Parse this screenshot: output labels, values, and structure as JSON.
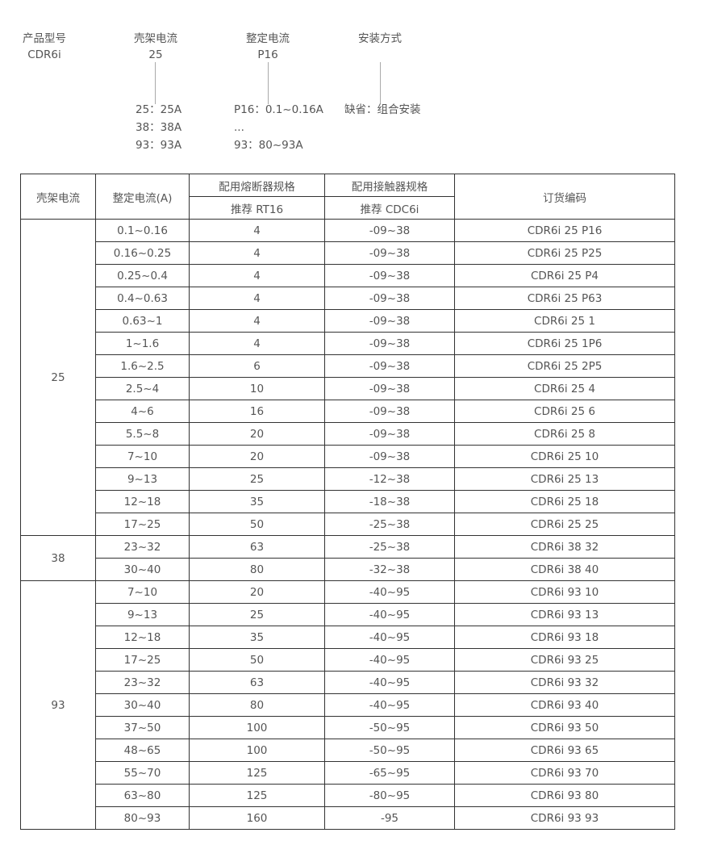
{
  "legend": {
    "fields": [
      {
        "label": "产品型号",
        "value": "CDR6i"
      },
      {
        "label": "壳架电流",
        "value": "25"
      },
      {
        "label": "整定电流",
        "value": "P16"
      },
      {
        "label": "安装方式",
        "value": ""
      }
    ],
    "frame_options": [
      "25：25A",
      "38：38A",
      "93：93A"
    ],
    "setting_options": [
      "P16：0.1~0.16A",
      "...",
      "93：80~93A"
    ],
    "install_options": [
      "缺省：组合安装"
    ]
  },
  "table": {
    "headers": {
      "frame": "壳架电流",
      "setting": "整定电流(A)",
      "fuse": "配用熔断器规格",
      "fuse_sub": "推荐 RT16",
      "contactor": "配用接触器规格",
      "contactor_sub": "推荐 CDC6i",
      "code": "订货编码"
    },
    "groups": [
      {
        "frame": "25",
        "rows": [
          [
            "0.1~0.16",
            "4",
            "-09~38",
            "CDR6i 25 P16"
          ],
          [
            "0.16~0.25",
            "4",
            "-09~38",
            "CDR6i 25 P25"
          ],
          [
            "0.25~0.4",
            "4",
            "-09~38",
            "CDR6i 25 P4"
          ],
          [
            "0.4~0.63",
            "4",
            "-09~38",
            "CDR6i 25 P63"
          ],
          [
            "0.63~1",
            "4",
            "-09~38",
            "CDR6i 25 1"
          ],
          [
            "1~1.6",
            "4",
            "-09~38",
            "CDR6i 25 1P6"
          ],
          [
            "1.6~2.5",
            "6",
            "-09~38",
            "CDR6i 25 2P5"
          ],
          [
            "2.5~4",
            "10",
            "-09~38",
            "CDR6i 25 4"
          ],
          [
            "4~6",
            "16",
            "-09~38",
            "CDR6i 25 6"
          ],
          [
            "5.5~8",
            "20",
            "-09~38",
            "CDR6i 25 8"
          ],
          [
            "7~10",
            "20",
            "-09~38",
            "CDR6i 25 10"
          ],
          [
            "9~13",
            "25",
            "-12~38",
            "CDR6i 25 13"
          ],
          [
            "12~18",
            "35",
            "-18~38",
            "CDR6i 25 18"
          ],
          [
            "17~25",
            "50",
            "-25~38",
            "CDR6i 25 25"
          ]
        ]
      },
      {
        "frame": "38",
        "rows": [
          [
            "23~32",
            "63",
            "-25~38",
            "CDR6i 38 32"
          ],
          [
            "30~40",
            "80",
            "-32~38",
            "CDR6i 38 40"
          ]
        ]
      },
      {
        "frame": "93",
        "rows": [
          [
            "7~10",
            "20",
            "-40~95",
            "CDR6i 93 10"
          ],
          [
            "9~13",
            "25",
            "-40~95",
            "CDR6i 93 13"
          ],
          [
            "12~18",
            "35",
            "-40~95",
            "CDR6i 93 18"
          ],
          [
            "17~25",
            "50",
            "-40~95",
            "CDR6i 93 25"
          ],
          [
            "23~32",
            "63",
            "-40~95",
            "CDR6i 93 32"
          ],
          [
            "30~40",
            "80",
            "-40~95",
            "CDR6i 93 40"
          ],
          [
            "37~50",
            "100",
            "-50~95",
            "CDR6i 93 50"
          ],
          [
            "48~65",
            "100",
            "-50~95",
            "CDR6i 93 65"
          ],
          [
            "55~70",
            "125",
            "-65~95",
            "CDR6i 93 70"
          ],
          [
            "63~80",
            "125",
            "-80~95",
            "CDR6i 93 80"
          ],
          [
            "80~93",
            "160",
            "-95",
            "CDR6i 93 93"
          ]
        ]
      }
    ]
  }
}
